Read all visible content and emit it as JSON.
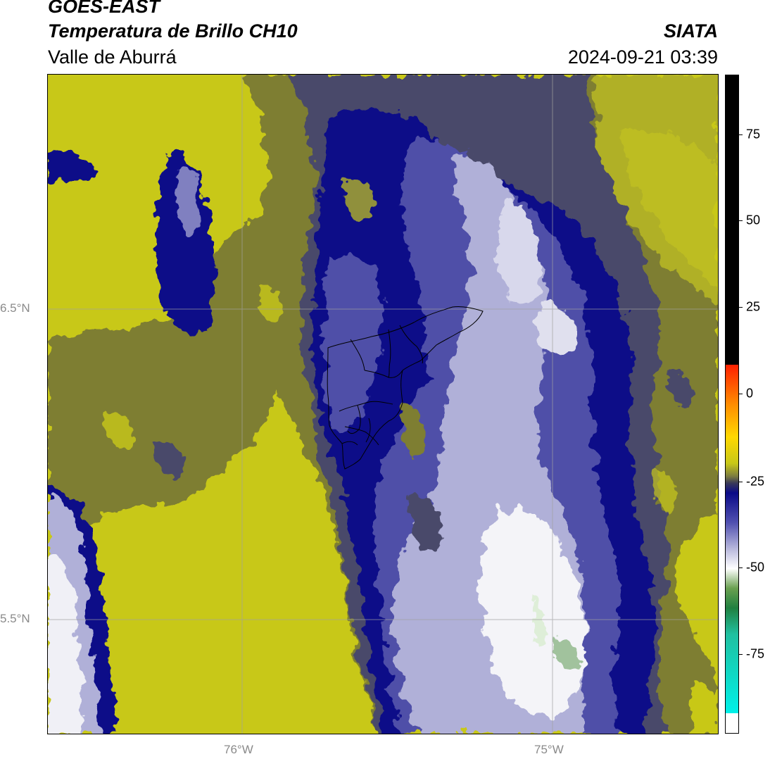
{
  "header": {
    "product": "GOES-EAST",
    "channel": "Temperatura de Brillo CH10",
    "region": "Valle de Aburrá",
    "org": "SIATA",
    "timestamp": "2024-09-21 03:39"
  },
  "map": {
    "lat_labels": [
      "6.5°N",
      "5.5°N"
    ],
    "lon_labels": [
      "76°W",
      "75°W"
    ],
    "gridline_color": "#a0a0a0",
    "boundary_color": "#000000",
    "palette": {
      "warm_yellow": "#c8c818",
      "olive": "#7e7e30",
      "slate": "#4a4a6a",
      "navy": "#0a0a88",
      "mid_blue": "#5050a8",
      "light_lavender": "#b0b0d8",
      "white": "#f4f4f8",
      "green": "#6aa060"
    }
  },
  "colorbar": {
    "labels": [
      "75",
      "50",
      "25",
      "0",
      "-25",
      "-50",
      "-75"
    ],
    "stops": [
      {
        "color": "#000000"
      },
      {
        "color": "#000000"
      },
      {
        "color": "#ff2000"
      },
      {
        "color": "#ff8c00"
      },
      {
        "color": "#ffd800"
      },
      {
        "color": "#c8c818"
      },
      {
        "color": "#7a7a40"
      },
      {
        "color": "#3a3a58"
      },
      {
        "color": "#0a0a88"
      },
      {
        "color": "#5050b0"
      },
      {
        "color": "#b8b8dc"
      },
      {
        "color": "#ffffff"
      },
      {
        "color": "#6aa050"
      },
      {
        "color": "#208040"
      },
      {
        "color": "#20c0a0"
      },
      {
        "color": "#00f0e8"
      },
      {
        "color": "#ffffff"
      }
    ]
  }
}
